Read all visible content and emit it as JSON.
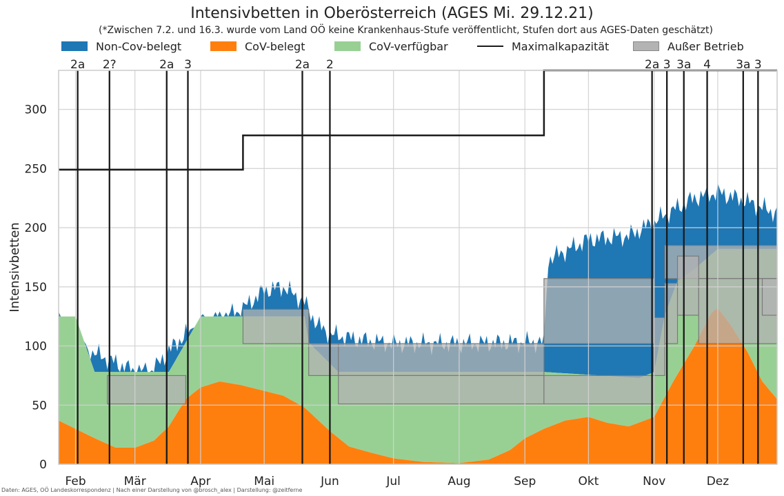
{
  "chart_data": {
    "type": "area",
    "title": "Intensivbetten in Oberösterreich (AGES Mi. 29.12.21)",
    "subtitle": "(*Zwischen 7.2. und 16.3. wurde vom Land OÖ keine Krankenhaus-Stufe veröffentlicht, Stufen dort aus AGES-Daten geschätzt)",
    "xlabel": "",
    "ylabel": "Intensivbetten",
    "ylim": [
      0,
      333
    ],
    "yticks": [
      0,
      50,
      100,
      150,
      200,
      250,
      300
    ],
    "xlim": [
      "2021-01-24",
      "2021-12-29"
    ],
    "month_ticks": [
      {
        "date": "2021-02-01",
        "label": "Feb"
      },
      {
        "date": "2021-03-01",
        "label": "Mär"
      },
      {
        "date": "2021-04-01",
        "label": "Apr"
      },
      {
        "date": "2021-05-01",
        "label": "Mai"
      },
      {
        "date": "2021-06-01",
        "label": "Jun"
      },
      {
        "date": "2021-07-01",
        "label": "Jul"
      },
      {
        "date": "2021-08-01",
        "label": "Aug"
      },
      {
        "date": "2021-09-01",
        "label": "Sep"
      },
      {
        "date": "2021-10-01",
        "label": "Okt"
      },
      {
        "date": "2021-11-01",
        "label": "Nov"
      },
      {
        "date": "2021-12-01",
        "label": "Dez"
      }
    ],
    "grid": true,
    "legend_position": "top",
    "colors": {
      "noncov": "#1f77b4",
      "cov": "#ff7f0e",
      "covfree": "#98d094",
      "maxcap": "#1a1a1a",
      "ausser": "#b3b3b3",
      "stage_line": "#1a1a1a"
    },
    "legend": [
      {
        "key": "noncov",
        "label": "Non-Cov-belegt"
      },
      {
        "key": "cov",
        "label": "CoV-belegt"
      },
      {
        "key": "covfree",
        "label": "CoV-verfügbar"
      },
      {
        "key": "maxcap",
        "label": "Maximalkapazität"
      },
      {
        "key": "ausser",
        "label": "Außer Betrieb"
      }
    ],
    "series": [
      {
        "name": "CoV-belegt",
        "key": "cov",
        "points": [
          [
            "2021-01-24",
            37
          ],
          [
            "2021-02-01",
            30
          ],
          [
            "2021-02-10",
            22
          ],
          [
            "2021-02-20",
            14
          ],
          [
            "2021-03-01",
            14
          ],
          [
            "2021-03-10",
            20
          ],
          [
            "2021-03-17",
            32
          ],
          [
            "2021-03-25",
            55
          ],
          [
            "2021-04-01",
            65
          ],
          [
            "2021-04-10",
            70
          ],
          [
            "2021-04-20",
            67
          ],
          [
            "2021-05-01",
            62
          ],
          [
            "2021-05-10",
            58
          ],
          [
            "2021-05-20",
            48
          ],
          [
            "2021-06-01",
            28
          ],
          [
            "2021-06-10",
            15
          ],
          [
            "2021-06-20",
            10
          ],
          [
            "2021-07-01",
            5
          ],
          [
            "2021-07-15",
            2
          ],
          [
            "2021-08-01",
            1
          ],
          [
            "2021-08-15",
            4
          ],
          [
            "2021-08-25",
            12
          ],
          [
            "2021-09-01",
            22
          ],
          [
            "2021-09-10",
            30
          ],
          [
            "2021-09-20",
            37
          ],
          [
            "2021-10-01",
            40
          ],
          [
            "2021-10-10",
            35
          ],
          [
            "2021-10-20",
            32
          ],
          [
            "2021-11-01",
            40
          ],
          [
            "2021-11-10",
            70
          ],
          [
            "2021-11-20",
            100
          ],
          [
            "2021-11-28",
            128
          ],
          [
            "2021-12-01",
            132
          ],
          [
            "2021-12-07",
            118
          ],
          [
            "2021-12-15",
            95
          ],
          [
            "2021-12-22",
            70
          ],
          [
            "2021-12-29",
            55
          ]
        ]
      },
      {
        "name": "CoV-verfügbar",
        "key": "covfree",
        "points": [
          [
            "2021-01-24",
            125
          ],
          [
            "2021-02-01",
            125
          ],
          [
            "2021-02-10",
            78
          ],
          [
            "2021-03-17",
            78
          ],
          [
            "2021-03-25",
            103
          ],
          [
            "2021-04-01",
            125
          ],
          [
            "2021-05-20",
            125
          ],
          [
            "2021-05-22",
            103
          ],
          [
            "2021-06-05",
            78
          ],
          [
            "2021-09-10",
            78
          ],
          [
            "2021-10-25",
            73
          ],
          [
            "2021-11-01",
            78
          ],
          [
            "2021-11-06",
            126
          ],
          [
            "2021-11-12",
            155
          ],
          [
            "2021-11-20",
            165
          ],
          [
            "2021-12-01",
            182
          ],
          [
            "2021-12-29",
            182
          ]
        ]
      },
      {
        "name": "Non-Cov-belegt",
        "key": "noncov",
        "points": [
          [
            "2021-01-24",
            125
          ],
          [
            "2021-02-01",
            100
          ],
          [
            "2021-02-15",
            90
          ],
          [
            "2021-03-01",
            78
          ],
          [
            "2021-03-10",
            80
          ],
          [
            "2021-03-17",
            96
          ],
          [
            "2021-03-25",
            110
          ],
          [
            "2021-04-05",
            120
          ],
          [
            "2021-04-20",
            130
          ],
          [
            "2021-05-01",
            147
          ],
          [
            "2021-05-10",
            150
          ],
          [
            "2021-05-20",
            137
          ],
          [
            "2021-05-26",
            118
          ],
          [
            "2021-06-01",
            110
          ],
          [
            "2021-06-15",
            105
          ],
          [
            "2021-07-01",
            102
          ],
          [
            "2021-08-01",
            102
          ],
          [
            "2021-09-01",
            103
          ],
          [
            "2021-09-10",
            103
          ],
          [
            "2021-09-12",
            173
          ],
          [
            "2021-10-01",
            190
          ],
          [
            "2021-10-20",
            193
          ],
          [
            "2021-11-01",
            205
          ],
          [
            "2021-11-10",
            215
          ],
          [
            "2021-11-20",
            225
          ],
          [
            "2021-12-01",
            230
          ],
          [
            "2021-12-15",
            222
          ],
          [
            "2021-12-29",
            212
          ]
        ]
      },
      {
        "name": "Maximalkapazität",
        "key": "maxcap",
        "points": [
          [
            "2021-01-24",
            249
          ],
          [
            "2021-04-21",
            249
          ],
          [
            "2021-04-21",
            278
          ],
          [
            "2021-09-10",
            278
          ],
          [
            "2021-09-10",
            333
          ],
          [
            "2021-12-29",
            333
          ]
        ]
      },
      {
        "name": "Außer Betrieb",
        "key": "ausser",
        "bands": [
          {
            "from": "2021-02-16",
            "to": "2021-03-25",
            "y0": 51,
            "y1": 75
          },
          {
            "from": "2021-04-21",
            "to": "2021-05-22",
            "y0": 102,
            "y1": 131
          },
          {
            "from": "2021-05-22",
            "to": "2021-06-05",
            "y0": 75,
            "y1": 102
          },
          {
            "from": "2021-06-05",
            "to": "2021-09-10",
            "y0": 75,
            "y1": 102
          },
          {
            "from": "2021-06-05",
            "to": "2021-09-10",
            "y0": 51,
            "y1": 75
          },
          {
            "from": "2021-09-10",
            "to": "2021-11-01",
            "y0": 102,
            "y1": 157
          },
          {
            "from": "2021-09-10",
            "to": "2021-11-01",
            "y0": 51,
            "y1": 75
          },
          {
            "from": "2021-11-01",
            "to": "2021-11-06",
            "y0": 75,
            "y1": 124
          },
          {
            "from": "2021-11-06",
            "to": "2021-12-29",
            "y0": 157,
            "y1": 185
          },
          {
            "from": "2021-11-06",
            "to": "2021-11-12",
            "y0": 102,
            "y1": 153
          },
          {
            "from": "2021-11-12",
            "to": "2021-11-22",
            "y0": 126,
            "y1": 176
          },
          {
            "from": "2021-11-22",
            "to": "2021-12-29",
            "y0": 102,
            "y1": 157
          },
          {
            "from": "2021-12-22",
            "to": "2021-12-29",
            "y0": 126,
            "y1": 157
          }
        ]
      }
    ],
    "stage_lines": [
      {
        "date": "2021-02-02",
        "label": "2a"
      },
      {
        "date": "2021-02-17",
        "label": "2?"
      },
      {
        "date": "2021-03-16",
        "label": "2a"
      },
      {
        "date": "2021-03-26",
        "label": "3"
      },
      {
        "date": "2021-05-19",
        "label": "2a"
      },
      {
        "date": "2021-06-01",
        "label": "2"
      },
      {
        "date": "2021-10-31",
        "label": "2a"
      },
      {
        "date": "2021-11-07",
        "label": "3"
      },
      {
        "date": "2021-11-15",
        "label": "3a"
      },
      {
        "date": "2021-11-26",
        "label": "4"
      },
      {
        "date": "2021-12-13",
        "label": "3a"
      },
      {
        "date": "2021-12-20",
        "label": "3"
      }
    ],
    "source": "Daten: AGES, OÖ Landeskorrespondenz | Nach einer Darstellung von @brosch_alex | Darstellung: @zeitferne"
  }
}
